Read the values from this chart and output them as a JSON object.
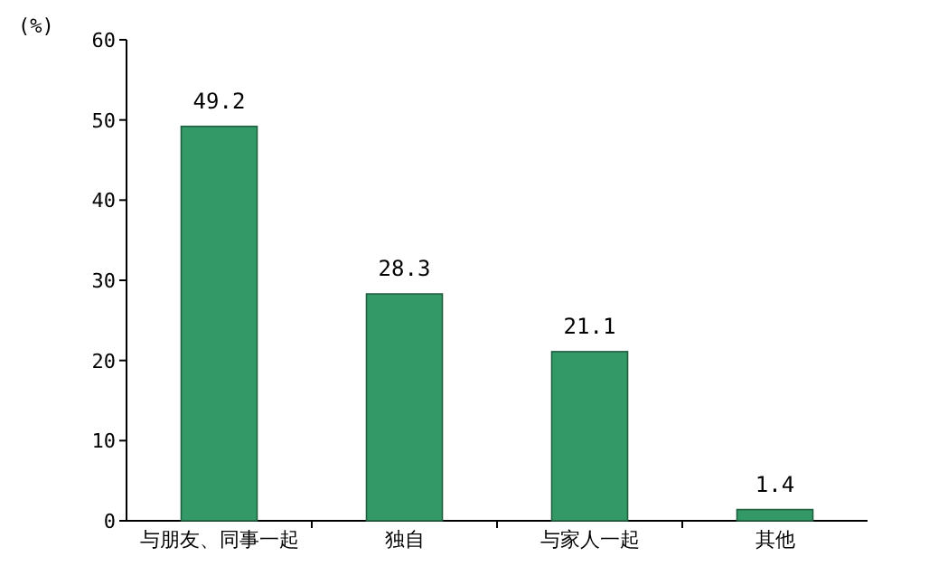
{
  "chart_data": {
    "type": "bar",
    "ylabel": "(%)",
    "categories": [
      "与朋友、同事一起",
      "独自",
      "与家人一起",
      "其他"
    ],
    "values": [
      49.2,
      28.3,
      21.1,
      1.4
    ],
    "color": "#339966",
    "ylim": [
      0,
      60
    ],
    "yticks": [
      0,
      10,
      20,
      30,
      40,
      50,
      60
    ],
    "grid": false,
    "data_labels": true
  }
}
